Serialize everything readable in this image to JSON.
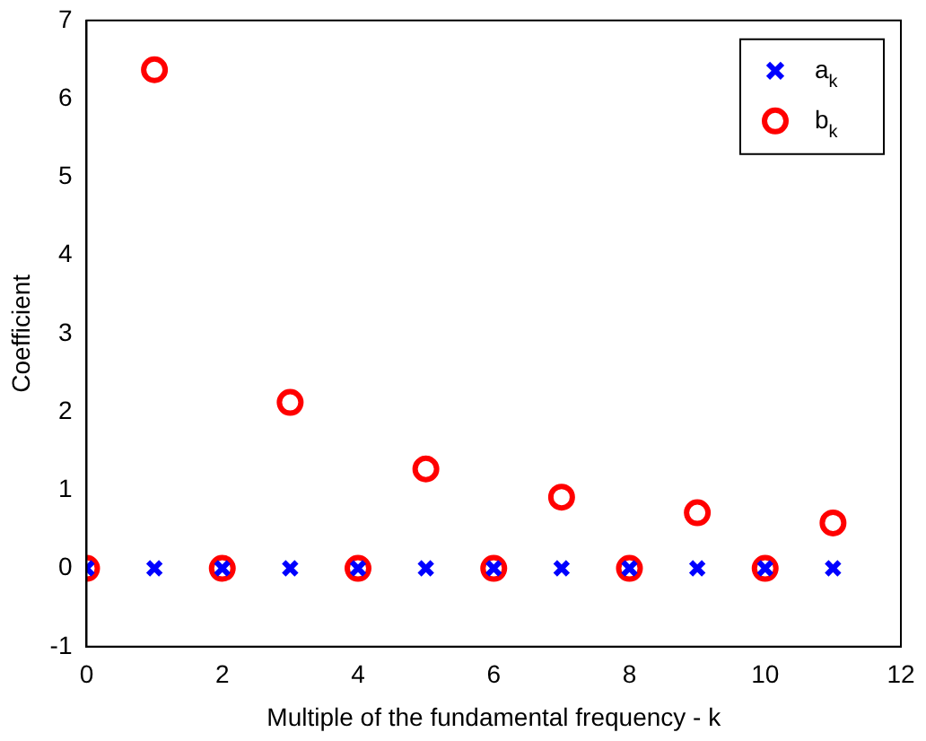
{
  "chart_data": {
    "type": "scatter",
    "xlabel": "Multiple of the fundamental frequency - k",
    "ylabel": "Coefficient",
    "xlim": [
      0,
      12
    ],
    "xticks": [
      0,
      2,
      4,
      6,
      8,
      10,
      12
    ],
    "ylim": [
      -1,
      7
    ],
    "yticks": [
      -1,
      0,
      1,
      2,
      3,
      4,
      5,
      6,
      7
    ],
    "grid": false,
    "legend": "top right",
    "series": [
      {
        "name": "a$_{k}$",
        "color": "#0000ff",
        "marker": "cross",
        "x": [
          0,
          1,
          2,
          3,
          4,
          5,
          6,
          7,
          8,
          9,
          10,
          11
        ],
        "values": [
          0,
          0,
          0,
          0,
          0,
          0,
          0,
          0,
          0,
          0,
          0,
          0
        ]
      },
      {
        "name": "b$_{k}$",
        "color": "#ff0000",
        "marker": "circle",
        "x": [
          0,
          1,
          2,
          3,
          4,
          5,
          6,
          7,
          8,
          9,
          10,
          11
        ],
        "values": [
          0,
          6.37,
          0,
          2.12,
          0,
          1.27,
          0,
          0.91,
          0,
          0.71,
          0,
          0.58
        ]
      }
    ]
  }
}
